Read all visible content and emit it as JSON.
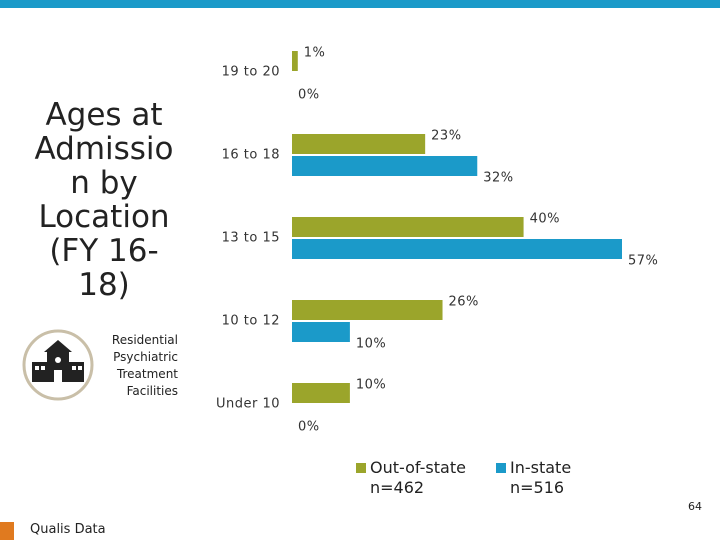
{
  "title": "Ages at Admission by Location (FY 16-18)",
  "subtitle": "Residential Psychiatric Treatment Facilities",
  "footer": "Qualis Data",
  "page_number": "64",
  "chart_data": {
    "type": "bar",
    "orientation": "horizontal",
    "categories": [
      "19 to 20",
      "16 to 18",
      "13 to 15",
      "10 to 12",
      "Under 10"
    ],
    "series": [
      {
        "name": "Out-of-state n=462",
        "color": "#9ba52b",
        "values": [
          1,
          23,
          40,
          26,
          10
        ],
        "value_labels": [
          "1%",
          "23%",
          "40%",
          "26%",
          "10%"
        ]
      },
      {
        "name": "In-state n=516",
        "color": "#1b9ac9",
        "values": [
          0,
          32,
          57,
          10,
          0
        ],
        "value_labels": [
          "0%",
          "32%",
          "57%",
          "10%",
          "0%"
        ]
      }
    ],
    "legend": "bottom"
  }
}
